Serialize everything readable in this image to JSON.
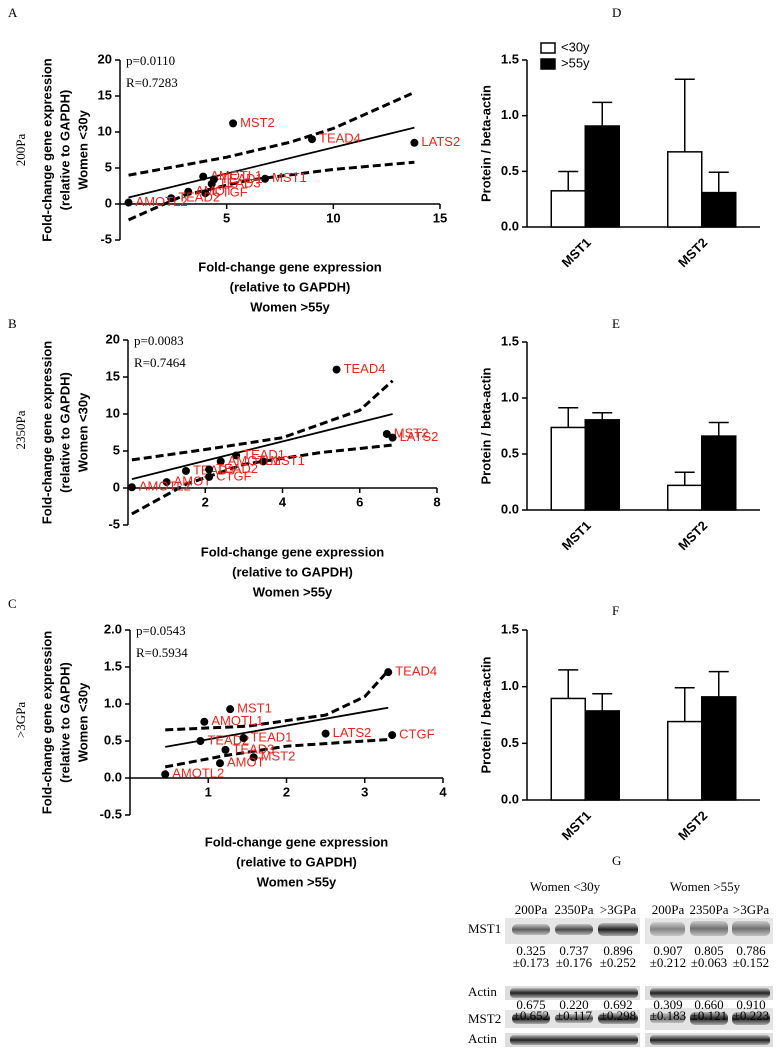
{
  "chart_data": [
    {
      "type": "scatter",
      "panel": "A",
      "condition": "200Pa",
      "annotations": [
        "p=0.0110",
        "R=0.7283"
      ],
      "x_label": [
        "Fold-change gene expression",
        "(relative to GAPDH)",
        "Women >55y"
      ],
      "y_label": [
        "Fold-change gene expression",
        "(relative to GAPDH)",
        "Women <30y"
      ],
      "xlim": [
        0,
        15
      ],
      "xticks": [
        5,
        10,
        15
      ],
      "ylim": [
        -5,
        20
      ],
      "yticks": [
        -5,
        0,
        5,
        10,
        15,
        20
      ],
      "point_color": "#000000",
      "label_color": "#e8251f",
      "point_labels": [
        "MST2",
        "TEAD4",
        "LATS2",
        "MST1",
        "AMOTL1",
        "TEAD1",
        "TEAD3",
        "AMOT",
        "CTGF",
        "TEAD2",
        "AMOTL2"
      ],
      "x": [
        5.3,
        9.0,
        13.8,
        6.8,
        3.9,
        4.4,
        4.3,
        3.2,
        4.0,
        2.4,
        0.4
      ],
      "y": [
        11.2,
        9.0,
        8.5,
        3.5,
        3.8,
        3.4,
        2.8,
        1.7,
        1.5,
        0.8,
        0.2
      ],
      "fit": {
        "x": [
          0.4,
          13.8
        ],
        "y": [
          0.9,
          10.6
        ]
      },
      "band_upper": {
        "x": [
          0.4,
          5,
          8,
          10,
          13.8
        ],
        "y": [
          4.0,
          6.5,
          8.6,
          10.5,
          15.5
        ]
      },
      "band_lower": {
        "x": [
          0.4,
          3,
          6,
          10,
          13.8
        ],
        "y": [
          -2.2,
          1.2,
          3.3,
          4.8,
          5.8
        ]
      }
    },
    {
      "type": "scatter",
      "panel": "B",
      "condition": "2350Pa",
      "annotations": [
        "p=0.0083",
        "R=0.7464"
      ],
      "x_label": [
        "Fold-change gene expression",
        "(relative to GAPDH)",
        "Women >55y"
      ],
      "y_label": [
        "Fold-change gene expression",
        "(relative to GAPDH)",
        "Women <30y"
      ],
      "xlim": [
        0,
        8
      ],
      "xticks": [
        2,
        4,
        6,
        8
      ],
      "ylim": [
        -5,
        20
      ],
      "yticks": [
        -5,
        0,
        5,
        10,
        15,
        20
      ],
      "point_color": "#000000",
      "label_color": "#e8251f",
      "point_labels": [
        "TEAD4",
        "MST2",
        "LATS2",
        "MST1",
        "TEAD1",
        "AMOTL1",
        "TEAD3",
        "TEAD2",
        "AMOT",
        "CTGF",
        "AMOTL2"
      ],
      "x": [
        5.4,
        6.7,
        6.85,
        3.5,
        2.8,
        2.4,
        1.5,
        2.1,
        1.0,
        2.1,
        0.1
      ],
      "y": [
        16.0,
        7.3,
        6.8,
        3.6,
        4.4,
        3.6,
        2.3,
        2.5,
        0.8,
        1.5,
        0.1
      ],
      "fit": {
        "x": [
          0.1,
          6.85
        ],
        "y": [
          1.2,
          10.0
        ]
      },
      "band_upper": {
        "x": [
          0.1,
          2,
          4,
          6,
          6.85
        ],
        "y": [
          3.8,
          5.2,
          6.8,
          10.5,
          14.5
        ]
      },
      "band_lower": {
        "x": [
          0.1,
          1.5,
          3,
          5,
          6.85
        ],
        "y": [
          -3.5,
          0.5,
          3.2,
          4.8,
          5.8
        ]
      }
    },
    {
      "type": "scatter",
      "panel": "C",
      "condition": ">3GPa",
      "annotations": [
        "p=0.0543",
        "R=0.5934"
      ],
      "x_label": [
        "Fold-change gene expression",
        "(relative to GAPDH)",
        "Women >55y"
      ],
      "y_label": [
        "Fold-change gene expression",
        "(relative to GAPDH)",
        "Women <30y"
      ],
      "xlim": [
        0,
        4
      ],
      "xticks": [
        1,
        2,
        3,
        4
      ],
      "ylim": [
        -0.5,
        2.0
      ],
      "yticks": [
        -0.5,
        {
          "value": 0,
          "label": "0.0"
        },
        0.5,
        {
          "value": 1,
          "label": "1.0"
        },
        1.5,
        {
          "value": 2,
          "label": "2.0"
        }
      ],
      "point_color": "#000000",
      "label_color": "#e8251f",
      "point_labels": [
        "TEAD4",
        "MST1",
        "AMOTL1",
        "TEAD2",
        "TEAD1",
        "LATS2",
        "CTGF",
        "TEAD3",
        "MST2",
        "AMOT",
        "AMOTL2"
      ],
      "x": [
        3.3,
        1.28,
        0.95,
        0.9,
        1.45,
        2.5,
        3.35,
        1.22,
        1.58,
        1.15,
        0.45
      ],
      "y": [
        1.43,
        0.93,
        0.76,
        0.5,
        0.54,
        0.6,
        0.58,
        0.38,
        0.28,
        0.2,
        0.05
      ],
      "fit": {
        "x": [
          0.45,
          3.3
        ],
        "y": [
          0.42,
          0.95
        ]
      },
      "band_upper": {
        "x": [
          0.45,
          1.5,
          2.5,
          3,
          3.3
        ],
        "y": [
          0.65,
          0.7,
          0.85,
          1.1,
          1.45
        ]
      },
      "band_lower": {
        "x": [
          0.45,
          1.2,
          2,
          3,
          3.3
        ],
        "y": [
          0.15,
          0.3,
          0.43,
          0.5,
          0.52
        ]
      }
    },
    {
      "type": "bar",
      "panel": "D",
      "y_label": "Protein / beta-actin",
      "categories": [
        "MST1",
        "MST2"
      ],
      "legend": true,
      "ylim": [
        0,
        1.5
      ],
      "yticks": [
        {
          "value": 0,
          "label": "0.0"
        },
        0.5,
        {
          "value": 1,
          "label": "1.0"
        },
        1.5
      ],
      "series": [
        {
          "name": "<30y",
          "color": "#ffffff",
          "values": [
            0.325,
            0.675
          ],
          "errors": [
            0.173,
            0.652
          ]
        },
        {
          "name": ">55y",
          "color": "#000000",
          "values": [
            0.907,
            0.309
          ],
          "errors": [
            0.212,
            0.183
          ]
        }
      ]
    },
    {
      "type": "bar",
      "panel": "E",
      "y_label": "Protein / beta-actin",
      "categories": [
        "MST1",
        "MST2"
      ],
      "legend": false,
      "ylim": [
        0,
        1.5
      ],
      "yticks": [
        {
          "value": 0,
          "label": "0.0"
        },
        0.5,
        {
          "value": 1,
          "label": "1.0"
        },
        1.5
      ],
      "series": [
        {
          "name": "<30y",
          "color": "#ffffff",
          "values": [
            0.737,
            0.22
          ],
          "errors": [
            0.176,
            0.117
          ]
        },
        {
          "name": ">55y",
          "color": "#000000",
          "values": [
            0.805,
            0.66
          ],
          "errors": [
            0.063,
            0.121
          ]
        }
      ]
    },
    {
      "type": "bar",
      "panel": "F",
      "y_label": "Protein / beta-actin",
      "categories": [
        "MST1",
        "MST2"
      ],
      "legend": false,
      "ylim": [
        0,
        1.5
      ],
      "yticks": [
        {
          "value": 0,
          "label": "0.0"
        },
        0.5,
        {
          "value": 1,
          "label": "1.0"
        },
        1.5
      ],
      "series": [
        {
          "name": "<30y",
          "color": "#ffffff",
          "values": [
            0.896,
            0.692
          ],
          "errors": [
            0.252,
            0.298
          ]
        },
        {
          "name": ">55y",
          "color": "#000000",
          "values": [
            0.786,
            0.91
          ],
          "errors": [
            0.152,
            0.223
          ]
        }
      ]
    }
  ],
  "blot": {
    "panel": "G",
    "groups": [
      "Women <30y",
      "Women >55y"
    ],
    "columns": [
      "200Pa",
      "2350Pa",
      ">3GPa",
      "200Pa",
      "2350Pa",
      ">3GPa"
    ],
    "rows": [
      "MST1",
      "Actin",
      "MST2",
      "Actin"
    ],
    "mst1_values": [
      [
        "0.325",
        "±0.173"
      ],
      [
        "0.737",
        "±0.176"
      ],
      [
        "0.896",
        "±0.252"
      ],
      [
        "0.907",
        "±0.212"
      ],
      [
        "0.805",
        "±0.063"
      ],
      [
        "0.786",
        "±0.152"
      ]
    ],
    "mst2_values": [
      [
        "0.675",
        "±0.652"
      ],
      [
        "0.220",
        "±0.117"
      ],
      [
        "0.692",
        "±0.298"
      ],
      [
        "0.309",
        "±0.183"
      ],
      [
        "0.660",
        "±0.121"
      ],
      [
        "0.910",
        "±0.223"
      ]
    ]
  }
}
